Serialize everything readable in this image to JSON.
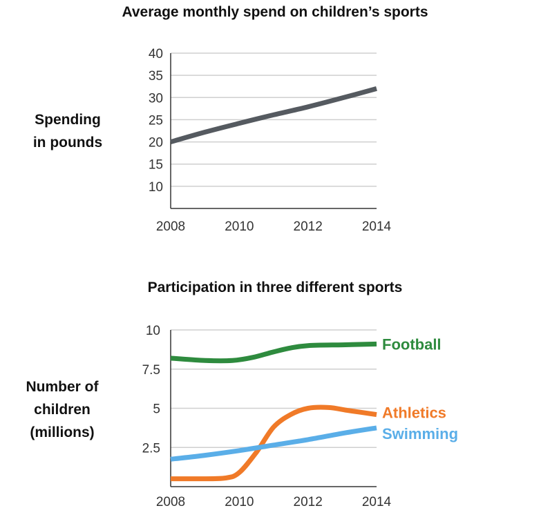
{
  "chart_data": [
    {
      "type": "line",
      "title": "Average monthly spend on children’s sports",
      "ylabel_lines": [
        "Spending",
        "in pounds"
      ],
      "x_ticks": [
        "2008",
        "2010",
        "2012",
        "2014"
      ],
      "y_ticks": [
        "10",
        "15",
        "20",
        "25",
        "30",
        "35",
        "40"
      ],
      "xlim": [
        2008,
        2014
      ],
      "ylim": [
        5,
        40
      ],
      "grid": true,
      "series": [
        {
          "color": "#555a60",
          "x": [
            2008,
            2009,
            2010,
            2011,
            2012,
            2013,
            2014
          ],
          "y": [
            20,
            22.2,
            24.2,
            26.1,
            27.9,
            29.9,
            32
          ]
        }
      ]
    },
    {
      "type": "line",
      "title": "Participation in three different sports",
      "ylabel_lines": [
        "Number of",
        "children",
        "(millions)"
      ],
      "x_ticks": [
        "2008",
        "2010",
        "2012",
        "2014"
      ],
      "y_ticks": [
        "2.5",
        "5",
        "7.5",
        "10"
      ],
      "xlim": [
        2008,
        2014
      ],
      "ylim": [
        0,
        10
      ],
      "grid": true,
      "legend": "right",
      "series": [
        {
          "name": "Football",
          "color": "#2e8b3e",
          "x": [
            2008,
            2009,
            2009.8,
            2010.4,
            2011,
            2011.5,
            2012,
            2013,
            2014
          ],
          "y": [
            8.2,
            8.05,
            8.05,
            8.25,
            8.6,
            8.85,
            9.0,
            9.05,
            9.1
          ]
        },
        {
          "name": "Athletics",
          "color": "#f07a28",
          "x": [
            2008,
            2008.8,
            2009.6,
            2010,
            2010.5,
            2011,
            2011.5,
            2012,
            2012.6,
            2013.2,
            2014
          ],
          "y": [
            0.5,
            0.5,
            0.55,
            0.9,
            2.2,
            3.8,
            4.6,
            5.0,
            5.05,
            4.85,
            4.6
          ]
        },
        {
          "name": "Swimming",
          "color": "#5aaee8",
          "x": [
            2008,
            2009,
            2010,
            2011,
            2012,
            2013,
            2014
          ],
          "y": [
            1.75,
            2.0,
            2.3,
            2.65,
            3.0,
            3.4,
            3.75
          ]
        }
      ]
    }
  ]
}
